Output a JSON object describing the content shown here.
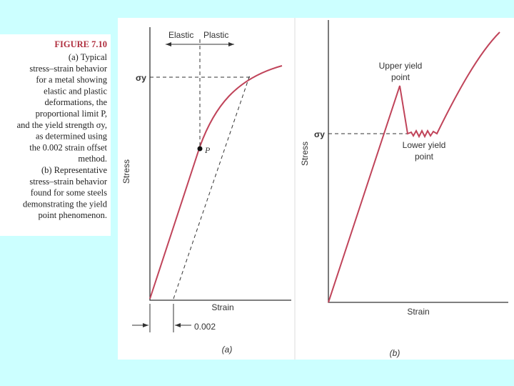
{
  "caption": {
    "heading": "FIGURE 7.10",
    "lines": [
      "(a) Typical",
      "stress–strain behavior",
      "for a metal showing",
      "elastic and plastic",
      "deformations, the",
      "proportional limit P,",
      "and the yield strength σy,",
      "as determined using",
      "the 0.002 strain offset",
      "method.",
      "(b) Representative",
      "stress–strain behavior",
      "found for some steels",
      "demonstrating the yield",
      "point phenomenon."
    ]
  },
  "panel_a": {
    "elastic": "Elastic",
    "plastic": "Plastic",
    "sigma_y": "σy",
    "point": "P",
    "y_label": "Stress",
    "x_label": "Strain",
    "offset": "0.002",
    "tag": "(a)"
  },
  "panel_b": {
    "upper_yield": [
      "Upper yield",
      "point"
    ],
    "sigma_y": "σy",
    "y_label": "Stress",
    "lower_yield": [
      "Lower yield",
      "point"
    ],
    "x_label": "Strain",
    "tag": "(b)"
  }
}
